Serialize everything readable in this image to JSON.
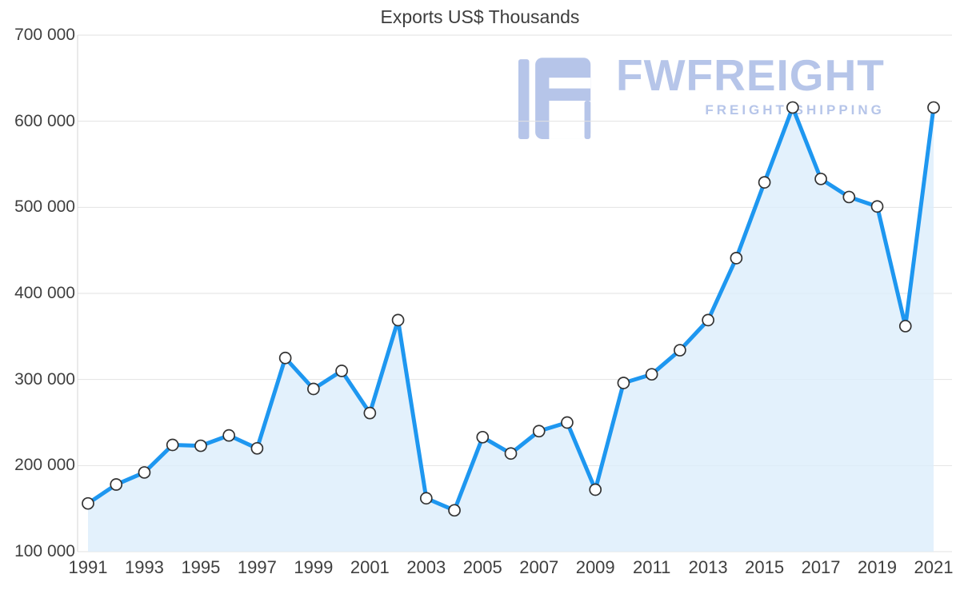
{
  "title": "Exports US$ Thousands",
  "watermark": {
    "brand": "FWFREIGHT",
    "subtitle": "FREIGHT SHIPPING",
    "color": "#b6c5e9"
  },
  "chart_data": {
    "type": "area",
    "title": "Exports US$ Thousands",
    "x": [
      1991,
      1992,
      1993,
      1994,
      1995,
      1996,
      1997,
      1998,
      1999,
      2000,
      2001,
      2002,
      2003,
      2004,
      2005,
      2006,
      2007,
      2008,
      2009,
      2010,
      2011,
      2012,
      2013,
      2014,
      2015,
      2016,
      2017,
      2018,
      2019,
      2020,
      2021
    ],
    "values": [
      156000,
      178000,
      192000,
      224000,
      223000,
      235000,
      220000,
      325000,
      289000,
      310000,
      261000,
      369000,
      162000,
      148000,
      233000,
      214000,
      240000,
      250000,
      172000,
      296000,
      306000,
      334000,
      369000,
      441000,
      529000,
      616000,
      533000,
      512000,
      501000,
      362000,
      616000
    ],
    "ylim": [
      100000,
      700000
    ],
    "yticks": [
      100000,
      200000,
      300000,
      400000,
      500000,
      600000,
      700000
    ],
    "ytick_labels": [
      "100 000",
      "200 000",
      "300 000",
      "400 000",
      "500 000",
      "600 000",
      "700 000"
    ],
    "xticks": [
      1991,
      1993,
      1995,
      1997,
      1999,
      2001,
      2003,
      2005,
      2007,
      2009,
      2011,
      2013,
      2015,
      2017,
      2019,
      2021
    ],
    "grid": true,
    "legend": false,
    "colors": {
      "line": "#1e97f0",
      "fill": "#dcedfb",
      "marker_fill": "#ffffff",
      "marker_stroke": "#333333",
      "grid": "#e2e2e2",
      "axis_line": "#d6d6d6",
      "axis_text": "#3f3f3f"
    }
  }
}
